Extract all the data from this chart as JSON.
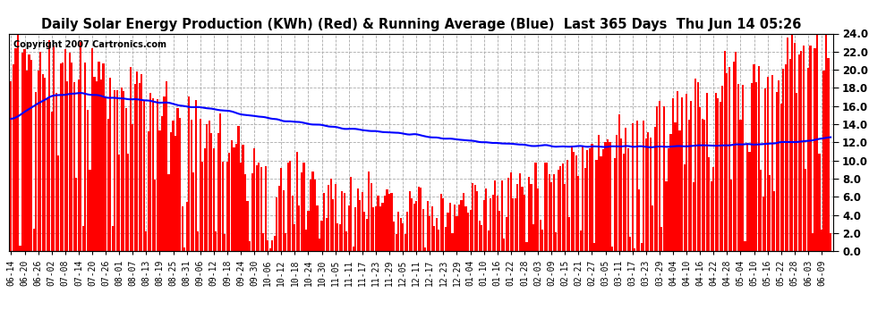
{
  "title": "Daily Solar Energy Production (KWh) (Red) & Running Average (Blue)  Last 365 Days  Thu Jun 14 05:26",
  "copyright": "Copyright 2007 Cartronics.com",
  "ylim": [
    0,
    24.0
  ],
  "yticks": [
    0.0,
    2.0,
    4.0,
    6.0,
    8.0,
    10.0,
    12.0,
    14.0,
    16.0,
    18.0,
    20.0,
    22.0,
    24.0
  ],
  "bar_color": "#ff0000",
  "avg_color": "#0000ff",
  "bg_color": "#ffffff",
  "grid_color": "#aaaaaa",
  "title_fontsize": 10.5,
  "copyright_fontsize": 7,
  "x_labels": [
    "06-14",
    "06-20",
    "06-26",
    "07-02",
    "07-08",
    "07-14",
    "07-20",
    "07-26",
    "08-01",
    "08-07",
    "08-13",
    "08-19",
    "08-25",
    "08-31",
    "09-06",
    "09-12",
    "09-18",
    "09-24",
    "09-30",
    "10-06",
    "10-12",
    "10-18",
    "10-24",
    "10-30",
    "11-05",
    "11-11",
    "11-17",
    "11-23",
    "11-29",
    "12-05",
    "12-11",
    "12-17",
    "12-23",
    "12-29",
    "01-04",
    "01-10",
    "01-16",
    "01-22",
    "01-28",
    "02-03",
    "02-09",
    "02-15",
    "02-21",
    "02-27",
    "03-05",
    "03-11",
    "03-17",
    "03-23",
    "03-29",
    "04-04",
    "04-10",
    "04-16",
    "04-22",
    "04-28",
    "05-04",
    "05-10",
    "05-16",
    "05-22",
    "05-28",
    "06-03",
    "06-09"
  ],
  "avg_shape": [
    [
      0,
      0.05,
      0.08,
      0.12,
      0.17,
      0.22,
      0.28,
      0.35,
      0.42,
      0.5,
      0.58,
      0.65,
      0.7,
      0.75,
      0.8,
      0.85,
      0.9,
      0.95,
      1.0
    ],
    [
      14.5,
      17.2,
      17.4,
      17.0,
      16.5,
      16.0,
      15.2,
      14.2,
      13.4,
      12.8,
      12.0,
      11.6,
      11.5,
      11.5,
      11.6,
      11.7,
      11.8,
      12.0,
      12.5
    ]
  ]
}
